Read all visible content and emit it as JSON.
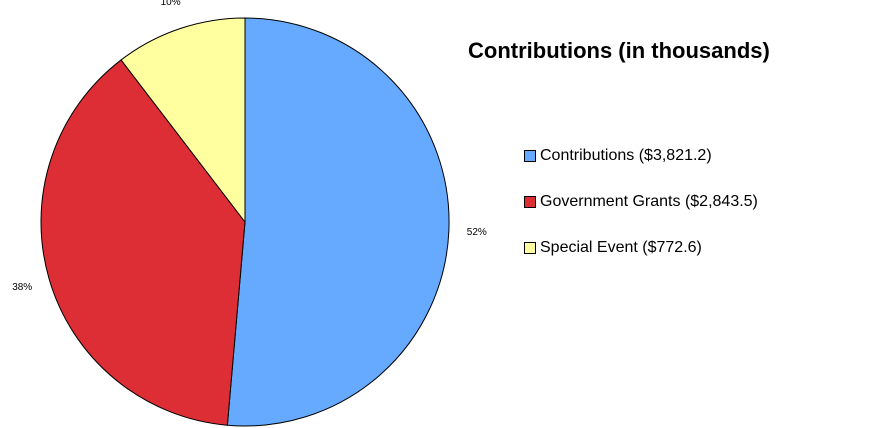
{
  "chart_data": {
    "type": "pie",
    "title": "Contributions (in thousands)",
    "slices": [
      {
        "label": "Contributions ($3,821.2)",
        "value": 3821.2,
        "percent_label": "52%",
        "color": "#66aaff"
      },
      {
        "label": "Government Grants ($2,843.5)",
        "value": 2843.5,
        "percent_label": "38%",
        "color": "#dd2e35"
      },
      {
        "label": "Special Event ($772.6)",
        "value": 772.6,
        "percent_label": "10%",
        "color": "#ffffa0"
      }
    ],
    "legend_position": "right"
  }
}
